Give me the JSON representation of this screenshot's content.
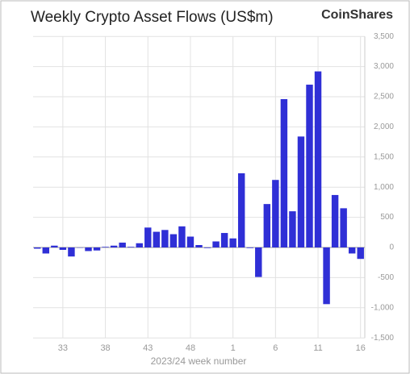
{
  "chart_data": {
    "type": "bar",
    "title": "Weekly Crypto Asset Flows (US$m)",
    "brand": "CoinShares",
    "x_label": "2023/24 week number",
    "categories": [
      null,
      null,
      null,
      "33",
      null,
      null,
      null,
      null,
      "38",
      null,
      null,
      null,
      null,
      "43",
      null,
      null,
      null,
      null,
      "48",
      null,
      null,
      null,
      null,
      "1",
      null,
      null,
      null,
      null,
      "6",
      null,
      null,
      null,
      null,
      "11",
      null,
      null,
      null,
      null,
      "16"
    ],
    "values": [
      -20,
      -100,
      30,
      -40,
      -150,
      -5,
      -60,
      -50,
      10,
      30,
      80,
      10,
      70,
      330,
      260,
      290,
      220,
      350,
      180,
      40,
      -10,
      100,
      240,
      150,
      1230,
      -10,
      -490,
      720,
      1120,
      2460,
      600,
      1840,
      2700,
      2920,
      -940,
      870,
      650,
      -100,
      -190
    ],
    "color": "#2f2fd6",
    "ylim": [
      -1500,
      3500
    ],
    "yticks": [
      {
        "value": -1500,
        "label": "-1,500"
      },
      {
        "value": -1000,
        "label": "-1,000"
      },
      -500,
      0,
      500,
      {
        "value": 1000,
        "label": "1,000"
      },
      {
        "value": 1500,
        "label": "1,500"
      },
      {
        "value": 2000,
        "label": "2,000"
      },
      {
        "value": 2500,
        "label": "2,500"
      },
      {
        "value": 3000,
        "label": "3,000"
      },
      {
        "value": 3500,
        "label": "3,500"
      }
    ],
    "grid": true
  }
}
